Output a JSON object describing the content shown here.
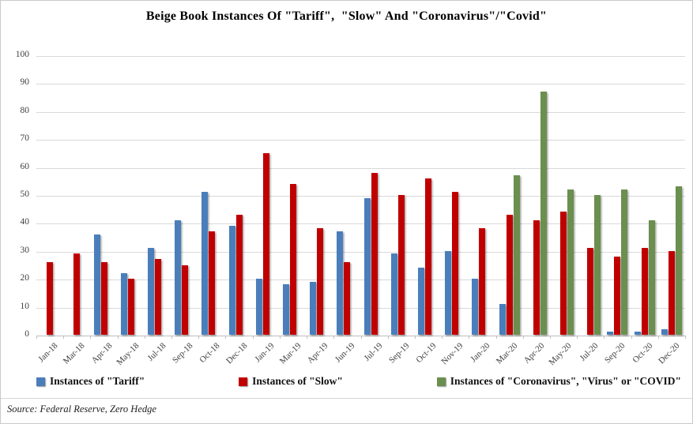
{
  "title": "Beige Book Instances Of \"Tariff\",  \"Slow\" And \"Coronavirus\"/\"Covid\"",
  "source": "Source: Federal Reserve, Zero Hedge",
  "colors": {
    "tariff_blue": "#4a7ebb",
    "slow_red": "#c00000",
    "covid_green": "#6a8f4e",
    "gridline": "#d9d9d9",
    "axis": "#bfbfbf"
  },
  "chart_data": {
    "type": "bar",
    "title": "Beige Book Instances Of \"Tariff\",  \"Slow\" And \"Coronavirus\"/\"Covid\"",
    "xlabel": "",
    "ylabel": "",
    "ylim": [
      0,
      100
    ],
    "ytick_step": 10,
    "yticks": [
      0,
      10,
      20,
      30,
      40,
      50,
      60,
      70,
      80,
      90,
      100
    ],
    "grid": true,
    "legend_position": "bottom",
    "categories": [
      "Jan-18",
      "Mar-18",
      "Apr-18",
      "May-18",
      "Jul-18",
      "Sep-18",
      "Oct-18",
      "Dec-18",
      "Jan-19",
      "Mar-19",
      "Apr-19",
      "Jun-19",
      "Jul-19",
      "Sep-19",
      "Oct-19",
      "Nov-19",
      "Jan-20",
      "Mar-20",
      "Apr-20",
      "May-20",
      "Jul-20",
      "Sep-20",
      "Oct-20",
      "Dec-20"
    ],
    "series": [
      {
        "name": "Instances of \"Tariff\"",
        "color": "#4a7ebb",
        "values": [
          0,
          0,
          36,
          22,
          31,
          41,
          51,
          39,
          20,
          18,
          19,
          37,
          49,
          29,
          24,
          30,
          20,
          11,
          0,
          0,
          0,
          1,
          1,
          2
        ]
      },
      {
        "name": "Instances of \"Slow\"",
        "color": "#c00000",
        "values": [
          26,
          29,
          26,
          20,
          27,
          25,
          37,
          43,
          65,
          54,
          38,
          26,
          58,
          50,
          56,
          51,
          38,
          43,
          41,
          44,
          31,
          28,
          31,
          30
        ]
      },
      {
        "name": "Instances of \"Coronavirus\", \"Virus\" or \"COVID\"",
        "color": "#6a8f4e",
        "values": [
          0,
          0,
          0,
          0,
          0,
          0,
          0,
          0,
          0,
          0,
          0,
          0,
          0,
          0,
          0,
          0,
          0,
          57,
          87,
          52,
          50,
          52,
          41,
          53
        ]
      }
    ]
  }
}
